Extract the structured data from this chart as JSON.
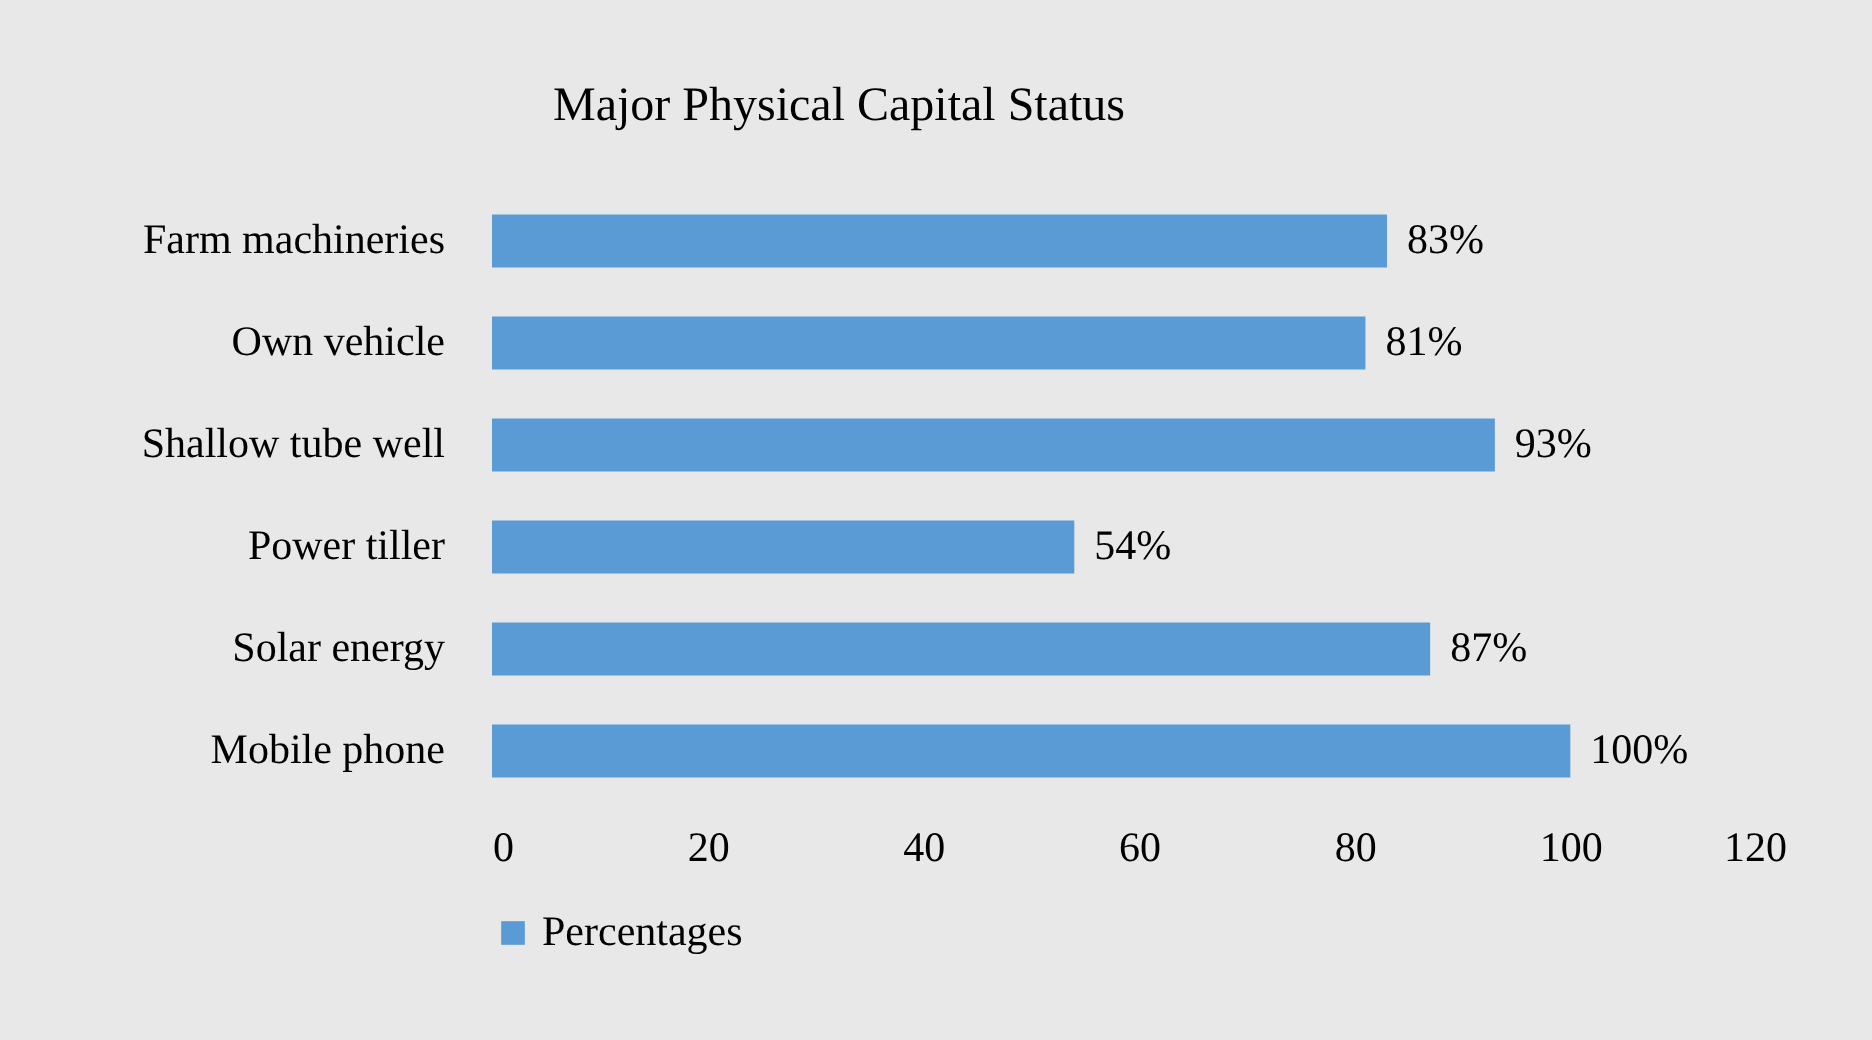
{
  "chart_data": {
    "type": "bar",
    "title": "Major Physical Capital Status",
    "orientation": "horizontal",
    "categories": [
      "Farm machineries",
      "Own vehicle",
      "Shallow tube well",
      "Power tiller",
      "Solar energy",
      "Mobile phone"
    ],
    "series": [
      {
        "name": "Percentages",
        "color": "#5b9bd5",
        "values": [
          83,
          81,
          93,
          54,
          87,
          100
        ],
        "value_labels": [
          "83%",
          "81%",
          "93%",
          "54%",
          "87%",
          "100%"
        ]
      }
    ],
    "xlim": [
      0,
      120
    ],
    "xticks": [
      0,
      20,
      40,
      60,
      80,
      100,
      120
    ],
    "legend": "bottom"
  }
}
